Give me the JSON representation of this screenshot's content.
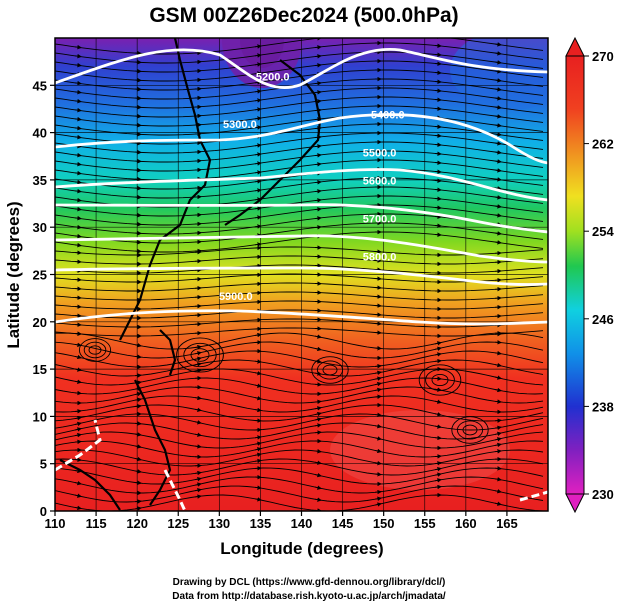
{
  "title": "GSM 00Z26Dec2024 (500.0hPa)",
  "x_axis": {
    "label": "Longitude (degrees)",
    "ticks": [
      "110",
      "115",
      "120",
      "125",
      "130",
      "135",
      "140",
      "145",
      "150",
      "155",
      "160",
      "165"
    ],
    "range": [
      110,
      170
    ]
  },
  "y_axis": {
    "label": "Latitude (degrees)",
    "ticks": [
      "0",
      "5",
      "10",
      "15",
      "20",
      "25",
      "30",
      "35",
      "40",
      "45"
    ],
    "range": [
      0,
      50
    ]
  },
  "colorbar": {
    "ticks": [
      "230",
      "238",
      "246",
      "254",
      "262",
      "270"
    ],
    "range": [
      230,
      270
    ],
    "colors": [
      "#e020c0",
      "#8020c0",
      "#2030d0",
      "#1090e8",
      "#10d0e0",
      "#20c850",
      "#a0e020",
      "#f0e020",
      "#f09020",
      "#f04020",
      "#e82020"
    ]
  },
  "contours": {
    "unit_values": [
      "5300.0",
      "5400.0",
      "5500.0",
      "5600.0",
      "5700.0",
      "5800.0",
      "5900.0",
      "5200.0"
    ],
    "labels": [
      {
        "text": "5200.0",
        "lon": 136.5,
        "lat": 45.5
      },
      {
        "text": "5300.0",
        "lon": 132.5,
        "lat": 40.5
      },
      {
        "text": "5400.0",
        "lon": 150.5,
        "lat": 41.5
      },
      {
        "text": "5500.0",
        "lon": 149.5,
        "lat": 37.5
      },
      {
        "text": "5600.0",
        "lon": 149.5,
        "lat": 34.5
      },
      {
        "text": "5700.0",
        "lon": 149.5,
        "lat": 30.5
      },
      {
        "text": "5800.0",
        "lon": 149.5,
        "lat": 26.5
      },
      {
        "text": "5900.0",
        "lon": 132.0,
        "lat": 22.3
      }
    ]
  },
  "credits": {
    "line1": "Drawing by DCL (https://www.gfd-dennou.org/library/dcl/)",
    "line2": "Data from http://database.rish.kyoto-u.ac.jp/arch/jmadata/"
  }
}
